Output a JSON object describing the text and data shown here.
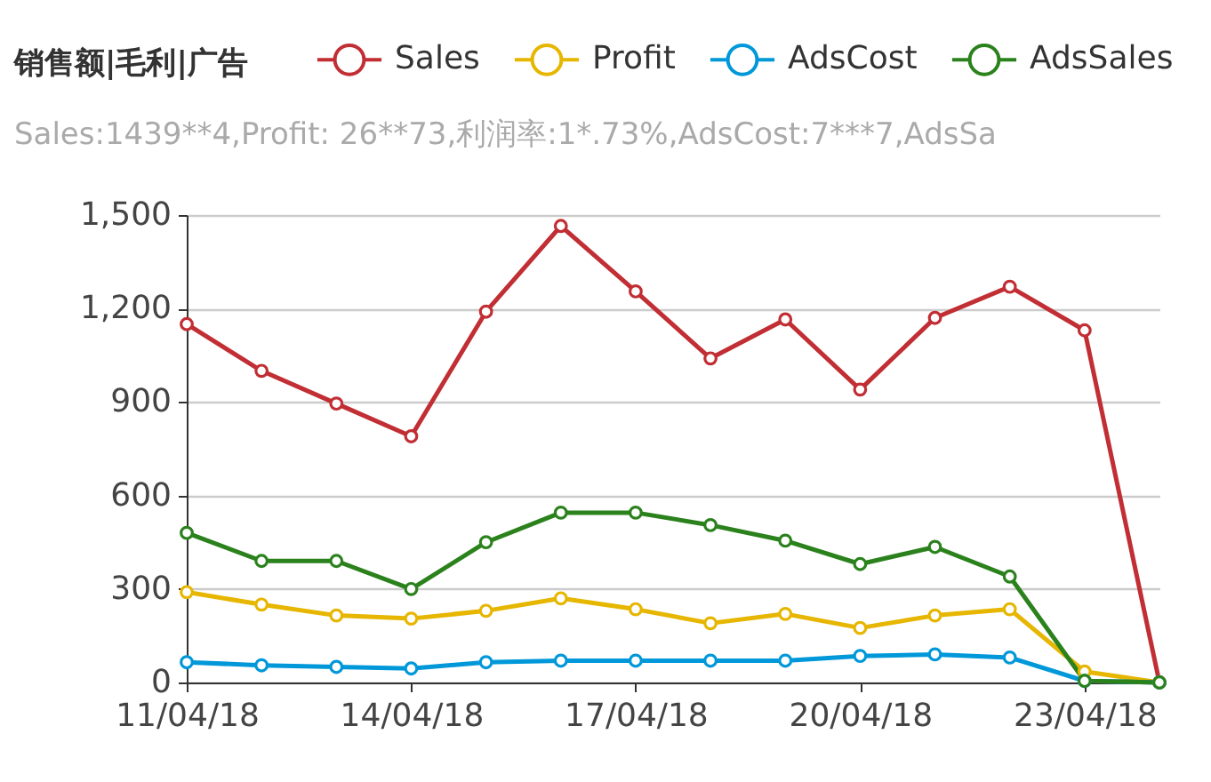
{
  "chart_data": {
    "type": "line",
    "title": "销售额|毛利|广告",
    "subtitle": "Sales:1439**4,Profit: 26**73,利润率:1*.73%,AdsCost:7***7,AdsSa",
    "categories": [
      "11/04/18",
      null,
      null,
      "14/04/18",
      null,
      null,
      "17/04/18",
      null,
      null,
      "20/04/18",
      null,
      null,
      "23/04/18",
      null
    ],
    "series": [
      {
        "name": "Sales",
        "color": "#c12e34",
        "values": [
          1150,
          1000,
          895,
          790,
          1190,
          1465,
          1255,
          1040,
          1165,
          940,
          1170,
          1270,
          1130,
          0
        ]
      },
      {
        "name": "Profit",
        "color": "#e6b600",
        "values": [
          290,
          250,
          215,
          205,
          230,
          270,
          235,
          190,
          220,
          175,
          215,
          235,
          35,
          0
        ]
      },
      {
        "name": "AdsCost",
        "color": "#0098d9",
        "values": [
          65,
          55,
          50,
          45,
          65,
          70,
          70,
          70,
          70,
          85,
          90,
          80,
          5,
          0
        ]
      },
      {
        "name": "AdsSales",
        "color": "#2b821d",
        "values": [
          480,
          390,
          390,
          300,
          450,
          545,
          545,
          505,
          455,
          380,
          435,
          340,
          5,
          0
        ]
      }
    ],
    "ylim": [
      0,
      1500
    ],
    "yticks": [
      0,
      300,
      600,
      900,
      {
        "value": 1200,
        "label": "1,200"
      },
      {
        "value": 1500,
        "label": "1,500"
      }
    ],
    "grid": "y",
    "legend": "top",
    "marker": "circle",
    "line_style": "solid"
  }
}
